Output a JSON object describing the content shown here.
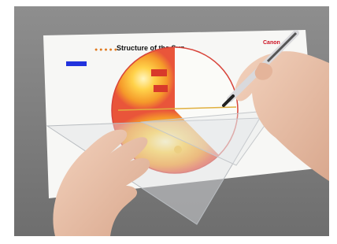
{
  "paper": {
    "title": "Structure of the Sun",
    "brand": "Canon"
  }
}
